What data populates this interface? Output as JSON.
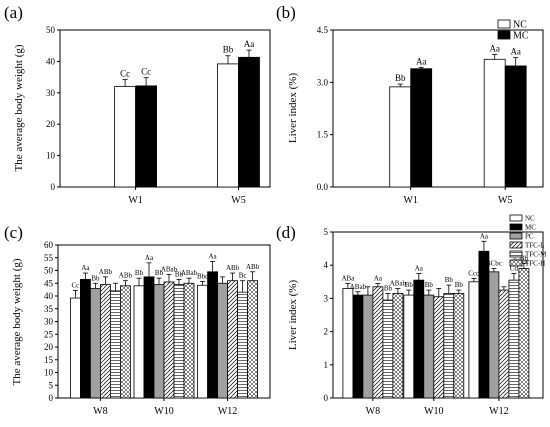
{
  "chart_data": [
    {
      "panel_label": "(a)",
      "type": "bar",
      "ylabel": "The average body weight (g)",
      "ylim": [
        0,
        50
      ],
      "yticks": [
        "0",
        "10",
        "20",
        "30",
        "40",
        "50"
      ],
      "categories": [
        "W1",
        "W5"
      ],
      "series": [
        {
          "name": "",
          "pattern": "white",
          "values": [
            32.0,
            39.2
          ],
          "errors": [
            2.2,
            2.6
          ],
          "letters": [
            "Cc",
            "Bb"
          ]
        },
        {
          "name": "",
          "pattern": "black",
          "values": [
            32.2,
            41.3
          ],
          "errors": [
            2.6,
            2.3
          ],
          "letters": [
            "Cc",
            "Aa"
          ]
        }
      ],
      "legend": "none"
    },
    {
      "panel_label": "(b)",
      "type": "bar",
      "ylabel": "Liver index (%)",
      "ylim": [
        0,
        4.5
      ],
      "yticks": [
        "0.0",
        "1.5",
        "3.0",
        "4.5"
      ],
      "categories": [
        "W1",
        "W5"
      ],
      "series": [
        {
          "name": "NC",
          "pattern": "white",
          "values": [
            2.87,
            3.66
          ],
          "errors": [
            0.08,
            0.14
          ],
          "letters": [
            "Bb",
            "Aa"
          ]
        },
        {
          "name": "MC",
          "pattern": "black",
          "values": [
            3.39,
            3.47
          ],
          "errors": [
            0.04,
            0.24
          ],
          "letters": [
            "Aa",
            "Aa"
          ]
        }
      ],
      "legend": "top-right"
    },
    {
      "panel_label": "(c)",
      "type": "bar",
      "ylabel": "The average body weight (g)",
      "ylim": [
        0,
        60
      ],
      "yticks": [
        "0",
        "5",
        "10",
        "15",
        "20",
        "25",
        "30",
        "35",
        "40",
        "45",
        "50",
        "55",
        "60"
      ],
      "categories": [
        "W8",
        "W10",
        "W12"
      ],
      "series": [
        {
          "name": "",
          "pattern": "white",
          "values": [
            39.2,
            44.0,
            44.2
          ],
          "errors": [
            3.0,
            3.0,
            1.5
          ],
          "letters": [
            "Cc",
            "Bb",
            "Bbc"
          ]
        },
        {
          "name": "",
          "pattern": "black",
          "values": [
            46.5,
            47.5,
            49.5
          ],
          "errors": [
            2.5,
            5.5,
            4.0
          ],
          "letters": [
            "Aa",
            "Aa",
            "Aa"
          ]
        },
        {
          "name": "",
          "pattern": "gray",
          "values": [
            43.0,
            44.5,
            45.0
          ],
          "errors": [
            2.0,
            2.5,
            2.5
          ],
          "letters": [
            "Bb",
            "Bb",
            ""
          ]
        },
        {
          "name": "",
          "pattern": "hatch",
          "values": [
            44.5,
            45.5,
            46.0
          ],
          "errors": [
            3.0,
            3.0,
            3.0
          ],
          "letters": [
            "ABb",
            "ABab",
            "ABb"
          ]
        },
        {
          "name": "",
          "pattern": "grid",
          "values": [
            42.0,
            44.5,
            41.5
          ],
          "errors": [
            3.0,
            2.0,
            4.5
          ],
          "letters": [
            "",
            "Bb",
            "Bc"
          ]
        },
        {
          "name": "",
          "pattern": "check",
          "values": [
            44.0,
            45.0,
            46.0
          ],
          "errors": [
            2.0,
            2.0,
            3.5
          ],
          "letters": [
            "ABb",
            "ABab",
            "ABb"
          ]
        }
      ],
      "legend": "none"
    },
    {
      "panel_label": "(d)",
      "type": "bar",
      "ylabel": "Liver index (%)",
      "ylim": [
        0,
        5
      ],
      "yticks": [
        "0",
        "1",
        "2",
        "3",
        "4",
        "5"
      ],
      "categories": [
        "W8",
        "W10",
        "W12"
      ],
      "series": [
        {
          "name": "NC",
          "pattern": "white",
          "values": [
            3.3,
            3.1,
            3.5
          ],
          "errors": [
            0.15,
            0.15,
            0.1
          ],
          "letters": [
            "ABa",
            "Bb",
            "Ccd"
          ]
        },
        {
          "name": "MC",
          "pattern": "black",
          "values": [
            3.1,
            3.55,
            4.42
          ],
          "errors": [
            0.1,
            0.2,
            0.3
          ],
          "letters": [
            "ABab",
            "Aa",
            "Aa"
          ]
        },
        {
          "name": "PC",
          "pattern": "gray",
          "values": [
            3.1,
            3.1,
            3.8
          ],
          "errors": [
            0.25,
            0.15,
            0.1
          ],
          "letters": [
            "",
            "Bb",
            "BCbc"
          ]
        },
        {
          "name": "TFC-L",
          "pattern": "hatch",
          "values": [
            3.35,
            3.05,
            3.25
          ],
          "errors": [
            0.1,
            0.25,
            0.1
          ],
          "letters": [
            "Aa",
            "",
            ""
          ]
        },
        {
          "name": "TFC-M",
          "pattern": "grid",
          "values": [
            2.95,
            3.15,
            3.55
          ],
          "errors": [
            0.2,
            0.25,
            0.2
          ],
          "letters": [
            "Bb",
            "Bb",
            "Cd"
          ]
        },
        {
          "name": "TFC-H",
          "pattern": "check",
          "values": [
            3.15,
            3.15,
            3.9
          ],
          "errors": [
            0.15,
            0.1,
            0.15
          ],
          "letters": [
            "ABab",
            "Bb",
            "Bb"
          ]
        }
      ],
      "extra_letters": [
        "BCbc"
      ],
      "legend": "top-right"
    }
  ]
}
